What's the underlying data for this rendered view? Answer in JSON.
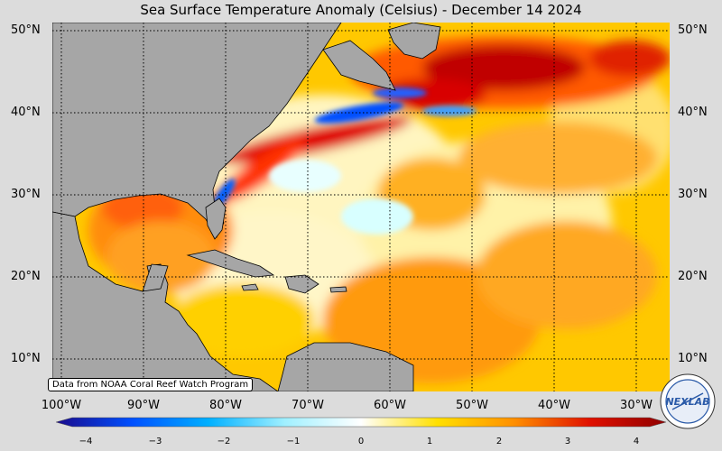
{
  "title": "Sea Surface Temperature Anomaly (Celsius) - December 14 2024",
  "credit": "Data from NOAA Coral Reef Watch Program",
  "latitudes": [
    "50°N",
    "40°N",
    "30°N",
    "20°N",
    "10°N"
  ],
  "longitudes": [
    "100°W",
    "90°W",
    "80°W",
    "70°W",
    "60°W",
    "50°W",
    "40°W",
    "30°W"
  ],
  "colorbar": {
    "ticks": [
      "−4",
      "−3",
      "−2",
      "−1",
      "0",
      "1",
      "2",
      "3",
      "4"
    ],
    "colors": [
      "#1a0a8c",
      "#0050ff",
      "#00b0ff",
      "#a0f0ff",
      "#ffffff",
      "#ffe000",
      "#ff9000",
      "#e01000",
      "#900000"
    ]
  },
  "logo": {
    "text": "NEXLAB"
  },
  "colors": {
    "land": "#a6a6a6",
    "background": "#dcdcdc"
  }
}
